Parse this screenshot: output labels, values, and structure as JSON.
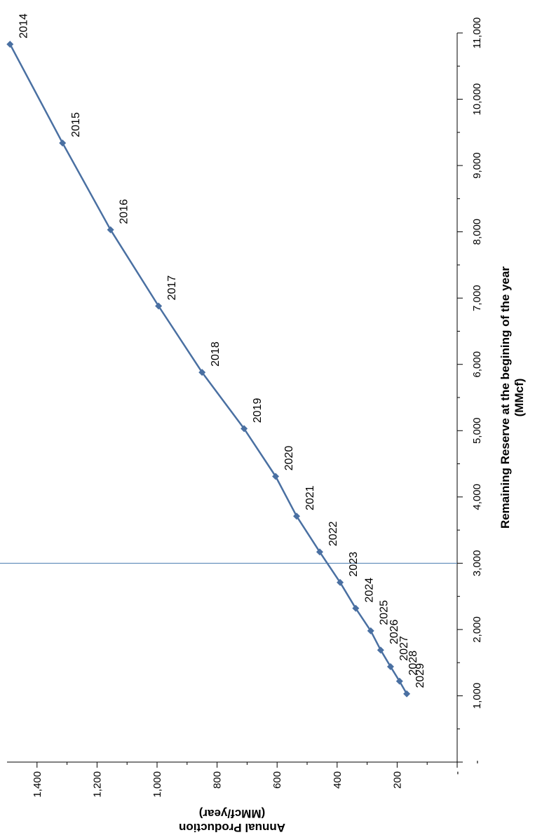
{
  "chart_data": {
    "type": "line",
    "xlabel_lines": [
      "Remaining Reserve at the begining of the year",
      "(MMcf)"
    ],
    "ylabel_lines": [
      "Annual Production",
      "(MMcf/year)"
    ],
    "xlim": [
      0,
      11000
    ],
    "ylim": [
      0,
      1500
    ],
    "x_ticks": [
      0,
      1000,
      2000,
      3000,
      4000,
      5000,
      6000,
      7000,
      8000,
      9000,
      10000,
      11000
    ],
    "x_tick_labels": [
      "-",
      "1,000",
      "2,000",
      "3,000",
      "4,000",
      "5,000",
      "6,000",
      "7,000",
      "8,000",
      "9,000",
      "10,000",
      "11,000"
    ],
    "y_ticks": [
      0,
      200,
      400,
      600,
      800,
      1000,
      1200,
      1400
    ],
    "y_tick_labels": [
      "-",
      "200",
      "400",
      "600",
      "800",
      "1,000",
      "1,200",
      "1,400"
    ],
    "reference_line_x": 3000,
    "series": [
      {
        "color": "#4a70a2",
        "marker": "diamond",
        "points": [
          {
            "year": "2014",
            "x": 10830,
            "y": 1490
          },
          {
            "year": "2015",
            "x": 9340,
            "y": 1315
          },
          {
            "year": "2016",
            "x": 8030,
            "y": 1155
          },
          {
            "year": "2017",
            "x": 6880,
            "y": 995
          },
          {
            "year": "2018",
            "x": 5880,
            "y": 850
          },
          {
            "year": "2019",
            "x": 5030,
            "y": 710
          },
          {
            "year": "2020",
            "x": 4310,
            "y": 605
          },
          {
            "year": "2021",
            "x": 3710,
            "y": 535
          },
          {
            "year": "2022",
            "x": 3170,
            "y": 458
          },
          {
            "year": "2023",
            "x": 2710,
            "y": 390
          },
          {
            "year": "2024",
            "x": 2320,
            "y": 338
          },
          {
            "year": "2025",
            "x": 1980,
            "y": 288
          },
          {
            "year": "2026",
            "x": 1690,
            "y": 255
          },
          {
            "year": "2027",
            "x": 1440,
            "y": 222
          },
          {
            "year": "2028",
            "x": 1220,
            "y": 192
          },
          {
            "year": "2029",
            "x": 1030,
            "y": 168
          }
        ]
      }
    ]
  },
  "colors": {
    "series": "#4a70a2",
    "reference_line": "#4a7bb0",
    "axis": "#000000"
  }
}
